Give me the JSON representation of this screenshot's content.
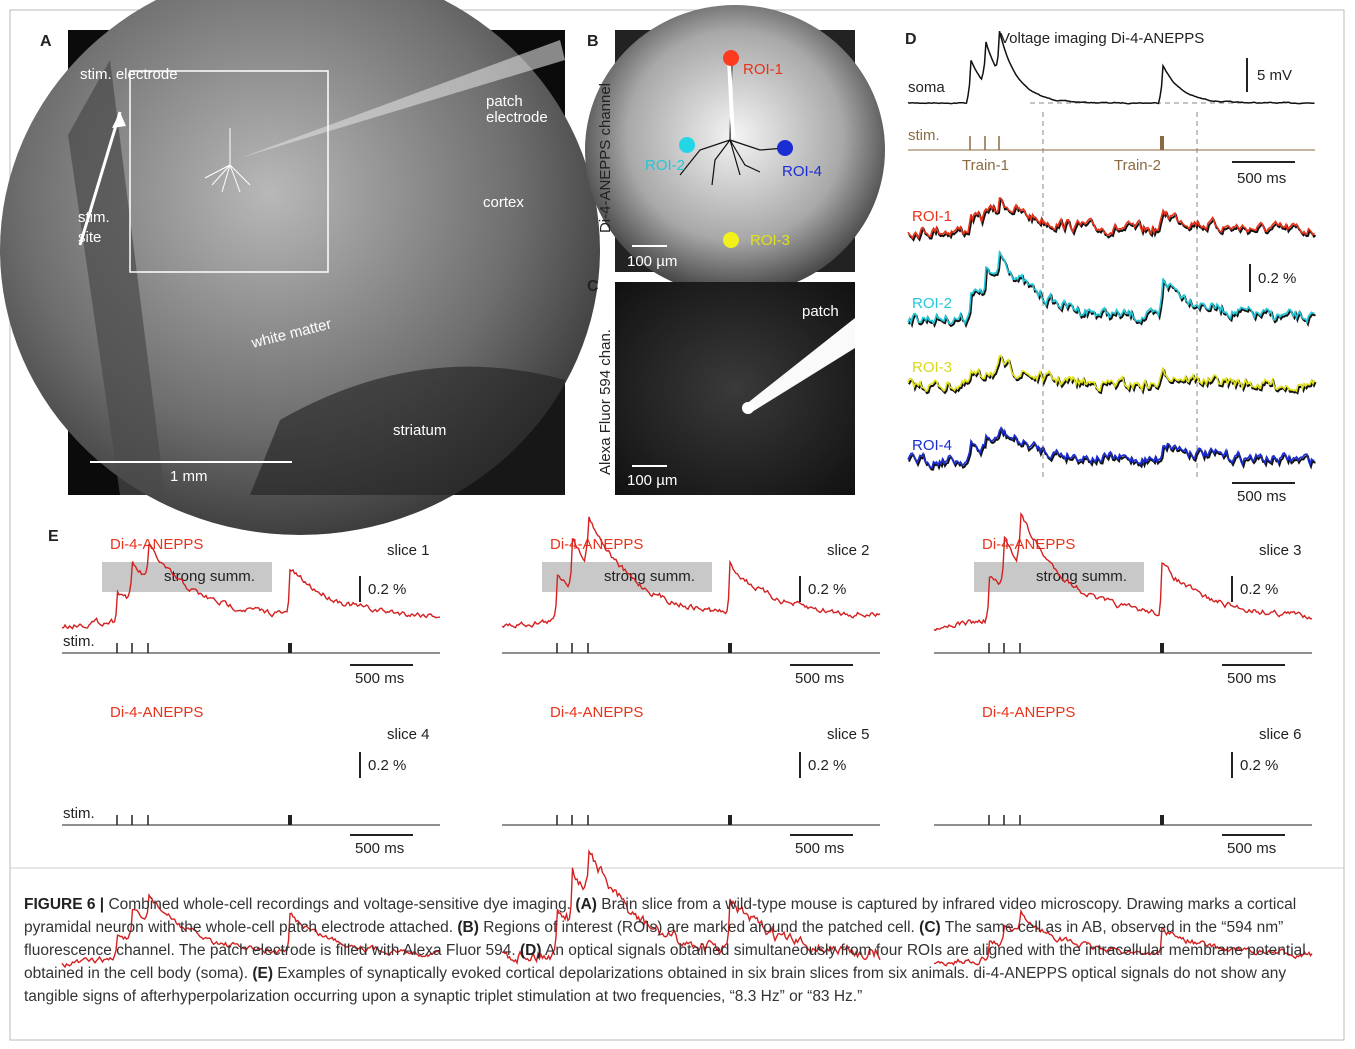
{
  "panel_a": {
    "letter": "A",
    "stim_electrode": "stim. electrode",
    "patch_1": "patch",
    "patch_2": "electrode",
    "stim_site_1": "stim.",
    "stim_site_2": "site",
    "cortex": "cortex",
    "white_matter": "white matter",
    "striatum": "striatum",
    "scale": "1 mm"
  },
  "panel_b": {
    "letter": "B",
    "channel": "Di-4-ANEPPS channel",
    "roi_1": "ROI-1",
    "roi_2": "ROI-2",
    "roi_3": "ROI-3",
    "roi_4": "ROI-4",
    "scale": "100 µm"
  },
  "panel_c": {
    "letter": "C",
    "channel": "Alexa Fluor 594 chan.",
    "patch": "patch",
    "scale": "100 µm"
  },
  "panel_d": {
    "letter": "D",
    "title": "Voltage imaging Di-4-ANEPPS",
    "soma": "soma",
    "stim": "stim.",
    "train_1": "Train-1",
    "train_2": "Train-2",
    "soma_scale": "5 mV",
    "time_scale_top": "500 ms",
    "roi_1": "ROI-1",
    "roi_2": "ROI-2",
    "roi_3": "ROI-3",
    "roi_4": "ROI-4",
    "optical_scale": "0.2 %",
    "time_scale_bottom": "500 ms"
  },
  "panel_e": {
    "letter": "E",
    "slices": [
      {
        "dye": "Di-4-ANEPPS",
        "name": "slice 1",
        "scale": "0.2 %",
        "time": "500 ms",
        "note": "strong summ.",
        "stim": "stim."
      },
      {
        "dye": "Di-4-ANEPPS",
        "name": "slice 2",
        "scale": "0.2 %",
        "time": "500 ms",
        "note": "strong summ."
      },
      {
        "dye": "Di-4-ANEPPS",
        "name": "slice 3",
        "scale": "0.2 %",
        "time": "500 ms",
        "note": "strong summ."
      },
      {
        "dye": "Di-4-ANEPPS",
        "name": "slice 4",
        "scale": "0.2 %",
        "time": "500 ms",
        "stim": "stim."
      },
      {
        "dye": "Di-4-ANEPPS",
        "name": "slice 5",
        "scale": "0.2 %",
        "time": "500 ms"
      },
      {
        "dye": "Di-4-ANEPPS",
        "name": "slice 6",
        "scale": "0.2 %",
        "time": "500 ms"
      }
    ]
  },
  "caption": [
    {
      "text": "FIGURE 6 |",
      "bold": true
    },
    {
      "text": " Combined whole-cell recordings and voltage-sensitive dye imaging. ",
      "bold": false
    },
    {
      "text": "(A)",
      "bold": true
    },
    {
      "text": " Brain slice from a wild-type mouse is captured by infrared video microscopy. Drawing marks a cortical pyramidal neuron with the whole-cell patch electrode attached. ",
      "bold": false
    },
    {
      "text": "(B)",
      "bold": true
    },
    {
      "text": " Regions of interest (ROIs) are marked around the patched cell. ",
      "bold": false
    },
    {
      "text": "(C)",
      "bold": true
    },
    {
      "text": " The same cell as in AB, observed in the “594 nm” fluorescence channel. The patch electrode is filled with Alexa Fluor 594. ",
      "bold": false
    },
    {
      "text": "(D)",
      "bold": true
    },
    {
      "text": " An optical signals obtained simultaneously from four ROIs are aligned with the intracellular membrane potential obtained in the cell body (soma). ",
      "bold": false
    },
    {
      "text": "(E)",
      "bold": true
    },
    {
      "text": " Examples of synaptically evoked cortical depolarizations obtained in six brain slices from six animals. di-4-ANEPPS optical signals do not show any tangible signs of afterhyperpolarization occurring upon a synaptic triplet stimulation at two frequencies, “8.3 Hz” or “83 Hz.”",
      "bold": false
    }
  ]
}
